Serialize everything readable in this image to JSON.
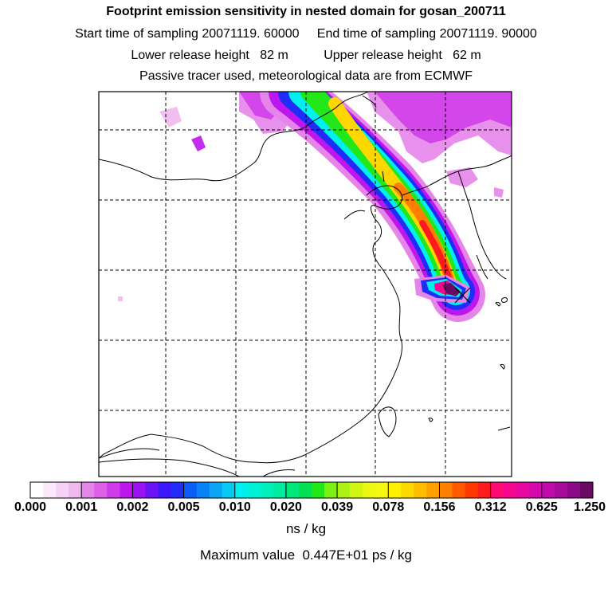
{
  "titles": {
    "line1": "Footprint emission sensitivity in nested domain for gosan_200711",
    "line2": "Start time of sampling 20071119. 60000     End time of sampling 20071119. 90000",
    "line3": "Lower release height   82 m          Upper release height   62 m",
    "line4": "Passive tracer used, meteorological data are from ECMWF"
  },
  "colorbar": {
    "tick_labels": [
      "0.000",
      "0.001",
      "0.002",
      "0.005",
      "0.010",
      "0.020",
      "0.039",
      "0.078",
      "0.156",
      "0.312",
      "0.625",
      "1.250"
    ],
    "colors": [
      "#ffffff",
      "#fbe9fb",
      "#f5d2f5",
      "#efb9ef",
      "#e585ea",
      "#dc60e8",
      "#cf3aea",
      "#bd17ee",
      "#9a11f2",
      "#6b12f6",
      "#3d18f8",
      "#1f2df6",
      "#0a5ef7",
      "#0a82f7",
      "#0aa6f5",
      "#09c8f2",
      "#00f0f0",
      "#00f0d8",
      "#00efbc",
      "#00ec9e",
      "#00e87a",
      "#00e050",
      "#22e81a",
      "#7cef14",
      "#aef314",
      "#d2f614",
      "#eef713",
      "#f7f512",
      "#ffef00",
      "#ffd700",
      "#ffbd00",
      "#ffa000",
      "#ff8000",
      "#ff5a00",
      "#ff3800",
      "#ff1a20",
      "#ff0a70",
      "#f5078e",
      "#e709a0",
      "#d40aac",
      "#c10aac",
      "#a80a9c",
      "#8c0a88",
      "#6a0a64"
    ],
    "units": "ns / kg"
  },
  "max_value": "Maximum value  0.447E+01 ps / kg",
  "map": {
    "receptor_marker": "x-marker",
    "plume_colors": {
      "outer": "#e585ea",
      "purple": "#bd17ee",
      "blue": "#1f2df6",
      "cyan": "#00f0f0",
      "green": "#22e81a",
      "yellow": "#ffd700",
      "orange": "#ff8000",
      "red": "#ff1a20",
      "magenta": "#f5078e",
      "dark": "#6a0a64"
    }
  }
}
